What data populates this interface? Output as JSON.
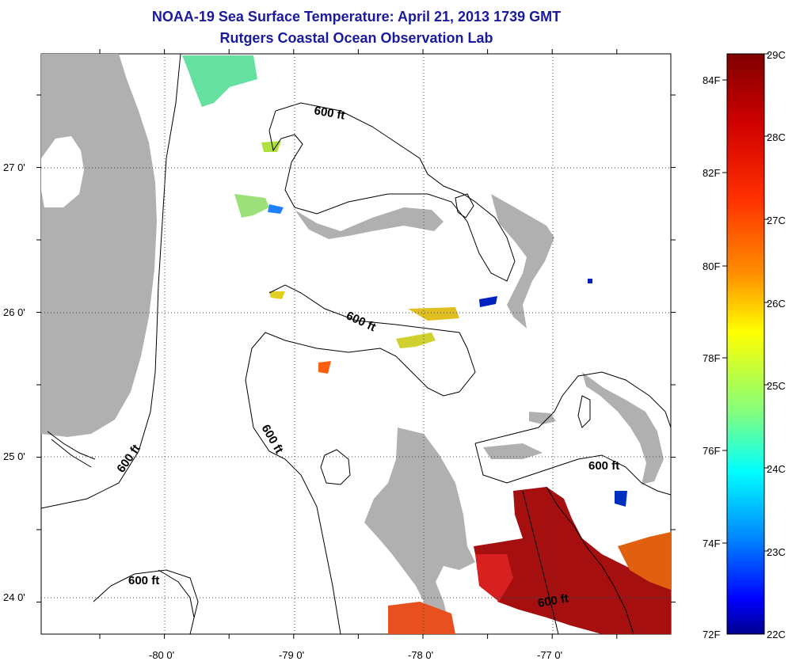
{
  "title": {
    "line1": "NOAA-19 Sea Surface Temperature:  April 21, 2013 1739 GMT",
    "line2": "Rutgers Coastal Ocean Observation Lab"
  },
  "axes": {
    "x_ticks": [
      "-80 0'",
      "-79 0'",
      "-78 0'",
      "-77 0'"
    ],
    "y_ticks": [
      "27 0'",
      "26 0'",
      "25 0'",
      "24 0'"
    ]
  },
  "contour_labels": [
    "600 ft",
    "600 ft",
    "600 ft",
    "600 ft",
    "600 ft",
    "600 ft"
  ],
  "colorbar": {
    "celsius": [
      "29C",
      "28C",
      "27C",
      "26C",
      "25C",
      "24C",
      "23C",
      "22C"
    ],
    "fahrenheit": [
      "84F",
      "82F",
      "80F",
      "78F",
      "76F",
      "74F",
      "72F"
    ],
    "colors": [
      "#7f0000",
      "#ff0000",
      "#ff8000",
      "#ffff00",
      "#80ff80",
      "#00ffff",
      "#0080ff",
      "#0000ff",
      "#00008f"
    ]
  },
  "legend": {
    "land_color": "#b0b0b0"
  }
}
